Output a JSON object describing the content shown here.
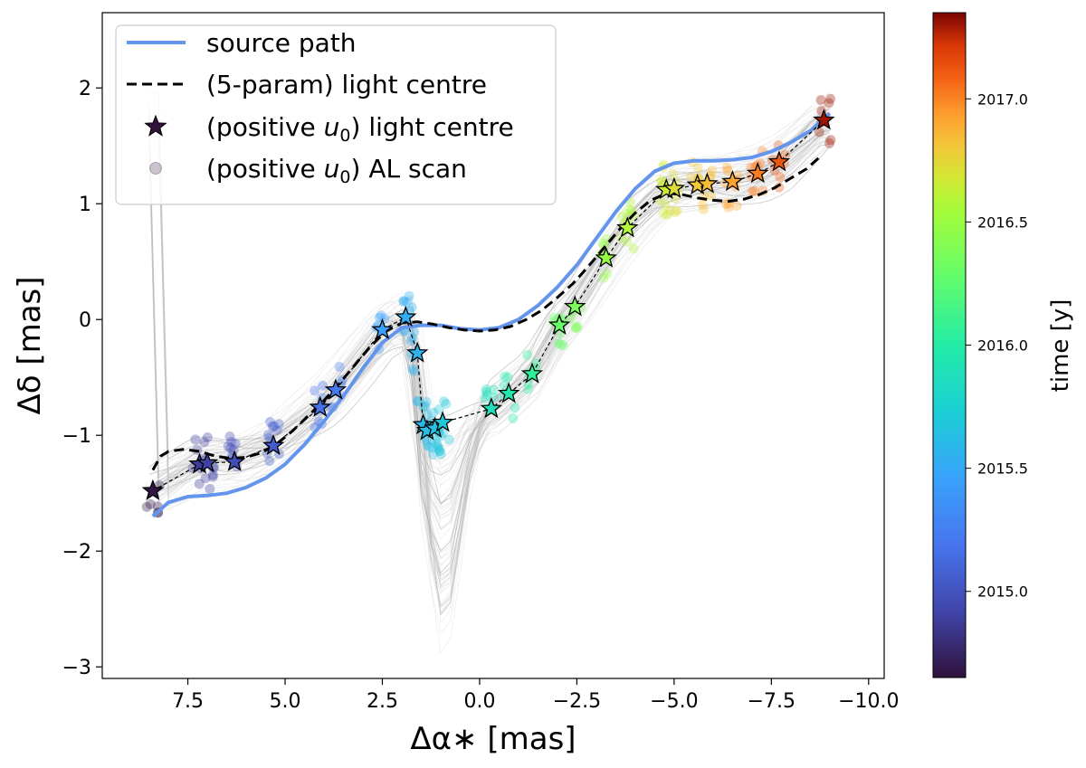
{
  "chart_data": {
    "type": "scatter",
    "xlabel": "Δα∗ [mas]",
    "ylabel": "Δδ [mas]",
    "xlim": [
      9.7,
      -10.4
    ],
    "ylim": [
      -3.1,
      2.65
    ],
    "x_inverted": true,
    "xticks": [
      7.5,
      5.0,
      2.5,
      0.0,
      -2.5,
      -5.0,
      -7.5,
      -10.0
    ],
    "xtick_labels": [
      "7.5",
      "5.0",
      "2.5",
      "0.0",
      "−2.5",
      "−5.0",
      "−7.5",
      "−10.0"
    ],
    "yticks": [
      2,
      1,
      0,
      -1,
      -2,
      -3
    ],
    "ytick_labels": [
      "2",
      "1",
      "0",
      "−1",
      "−2",
      "−3"
    ],
    "grid": false,
    "legend_position": "top-left",
    "legend": [
      {
        "label": "source path",
        "marker": "line"
      },
      {
        "label": "(5-param) light centre",
        "marker": "dashed"
      },
      {
        "label": "(positive u₀) light centre",
        "label_pre": "(positive ",
        "label_sym": "u",
        "label_sub": "0",
        "label_post": ") light centre",
        "marker": "star"
      },
      {
        "label": "(positive u₀) AL scan",
        "label_pre": "(positive ",
        "label_sym": "u",
        "label_sub": "0",
        "label_post": ") AL scan",
        "marker": "circle"
      }
    ],
    "colorbar": {
      "label": "time [y]",
      "colormap": "turbo",
      "range": [
        2014.65,
        2017.35
      ],
      "ticks": [
        2015.0,
        2015.5,
        2016.0,
        2016.5,
        2017.0
      ],
      "tick_labels": [
        "2015.0",
        "2015.5",
        "2016.0",
        "2016.5",
        "2017.0"
      ]
    },
    "series": [
      {
        "name": "source path",
        "type": "line",
        "color": "#6495ed",
        "x": [
          8.4,
          8.0,
          7.5,
          7.0,
          6.5,
          6.0,
          5.5,
          5.0,
          4.5,
          4.0,
          3.5,
          3.0,
          2.5,
          2.0,
          1.5,
          1.0,
          0.5,
          0.0,
          -0.5,
          -1.0,
          -1.5,
          -2.0,
          -2.5,
          -3.0,
          -3.5,
          -4.0,
          -4.5,
          -5.0,
          -5.5,
          -6.0,
          -6.5,
          -7.0,
          -7.5,
          -8.0,
          -8.5,
          -9.0
        ],
        "y": [
          -1.7,
          -1.58,
          -1.53,
          -1.52,
          -1.5,
          -1.45,
          -1.37,
          -1.25,
          -1.08,
          -0.88,
          -0.66,
          -0.42,
          -0.2,
          -0.07,
          -0.05,
          -0.05,
          -0.08,
          -0.09,
          -0.07,
          0.0,
          0.12,
          0.28,
          0.47,
          0.7,
          0.93,
          1.13,
          1.28,
          1.35,
          1.37,
          1.37,
          1.38,
          1.4,
          1.45,
          1.53,
          1.63,
          1.78
        ]
      },
      {
        "name": "(5-param) light centre",
        "type": "dashed-line",
        "color": "#000000",
        "x": [
          8.4,
          8.2,
          8.0,
          7.6,
          7.2,
          6.8,
          6.4,
          6.0,
          5.6,
          5.2,
          4.8,
          4.4,
          4.0,
          3.6,
          3.2,
          2.8,
          2.4,
          2.0,
          1.6,
          1.2,
          0.8,
          0.4,
          0.0,
          -0.4,
          -0.8,
          -1.2,
          -1.6,
          -2.0,
          -2.4,
          -2.8,
          -3.2,
          -3.6,
          -4.0,
          -4.4,
          -4.8,
          -5.2,
          -5.6,
          -6.0,
          -6.4,
          -6.8,
          -7.2,
          -7.6,
          -8.0,
          -8.4,
          -8.8
        ],
        "y": [
          -1.3,
          -1.18,
          -1.14,
          -1.12,
          -1.14,
          -1.18,
          -1.2,
          -1.19,
          -1.15,
          -1.07,
          -0.96,
          -0.83,
          -0.7,
          -0.55,
          -0.39,
          -0.23,
          -0.1,
          -0.03,
          -0.02,
          -0.04,
          -0.07,
          -0.09,
          -0.1,
          -0.09,
          -0.06,
          0.0,
          0.08,
          0.19,
          0.31,
          0.46,
          0.62,
          0.78,
          0.92,
          1.03,
          1.09,
          1.08,
          1.05,
          1.03,
          1.02,
          1.04,
          1.08,
          1.14,
          1.22,
          1.3,
          1.42
        ]
      },
      {
        "name": "(positive u₀) light centre",
        "type": "star",
        "x": [
          8.4,
          7.2,
          7.0,
          6.3,
          5.3,
          4.1,
          3.7,
          2.5,
          1.9,
          1.6,
          1.45,
          1.35,
          1.15,
          0.95,
          -0.3,
          -0.75,
          -1.35,
          -2.05,
          -2.45,
          -3.25,
          -3.8,
          -4.8,
          -5.0,
          -5.6,
          -5.85,
          -6.5,
          -7.15,
          -7.7,
          -8.85
        ],
        "y": [
          -1.48,
          -1.25,
          -1.24,
          -1.23,
          -1.09,
          -0.76,
          -0.61,
          -0.09,
          0.02,
          -0.29,
          -0.91,
          -0.96,
          -0.94,
          -0.89,
          -0.77,
          -0.64,
          -0.47,
          -0.05,
          0.11,
          0.53,
          0.79,
          1.12,
          1.13,
          1.16,
          1.17,
          1.19,
          1.26,
          1.36,
          1.72
        ],
        "time": [
          2014.68,
          2014.88,
          2014.9,
          2014.97,
          2015.05,
          2015.17,
          2015.22,
          2015.45,
          2015.52,
          2015.56,
          2015.6,
          2015.62,
          2015.65,
          2015.68,
          2015.88,
          2015.95,
          2016.05,
          2016.3,
          2016.38,
          2016.48,
          2016.58,
          2016.66,
          2016.72,
          2016.8,
          2016.84,
          2016.92,
          2017.02,
          2017.12,
          2017.3
        ]
      }
    ]
  }
}
